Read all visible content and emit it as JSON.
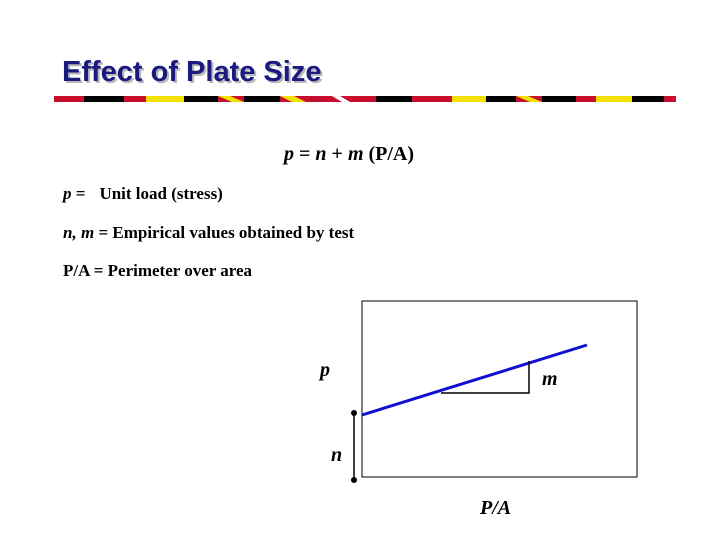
{
  "slide": {
    "title": "Effect of Plate Size",
    "stripe_colors": [
      "#c8102e",
      "#f5e100",
      "#000000",
      "#ffffff"
    ]
  },
  "formula": {
    "p": "p",
    "eq": " = ",
    "n": "n",
    "plus": " + ",
    "m": "m",
    "rest": " (P/A)"
  },
  "definitions": [
    {
      "term": "p",
      "sep": " =",
      "text": "Unit load (stress)"
    },
    {
      "term": "n, m",
      "sep": " = ",
      "text": "Empirical values obtained by test"
    },
    {
      "term": "",
      "sep": "",
      "text": "P/A = Perimeter over area"
    }
  ],
  "diagram": {
    "y_label": "p",
    "x_label": "P/A",
    "slope_label": "m",
    "intercept_label": "n",
    "line_color": "#1010d0"
  }
}
